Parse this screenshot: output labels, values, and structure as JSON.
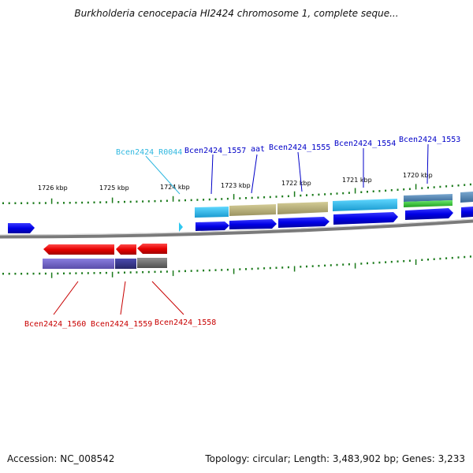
{
  "title": "Burkholderia cenocepacia HI2424 chromosome 1, complete seque...",
  "footer": {
    "accession": "Accession: NC_008542",
    "summary": "Topology: circular; Length: 3,483,902 bp; Genes: 3,233"
  },
  "colors": {
    "plus_label": "#0000c8",
    "minus_label": "#c80000",
    "rna_label": "#30b8e0",
    "tick": "#1a7a1a",
    "backbone": "#888888"
  },
  "kbp_labels": [
    "1726 kbp",
    "1725 kbp",
    "1724 kbp",
    "1723 kbp",
    "1722 kbp",
    "1721 kbp",
    "1720 kbp"
  ],
  "plus_labels": [
    "Bcen2424_R0044",
    "Bcen2424_1557",
    "aat",
    "Bcen2424_1555",
    "Bcen2424_1554",
    "Bcen2424_1553"
  ],
  "minus_labels": [
    "Bcen2424_1560",
    "Bcen2424_1559",
    "Bcen2424_1558"
  ]
}
